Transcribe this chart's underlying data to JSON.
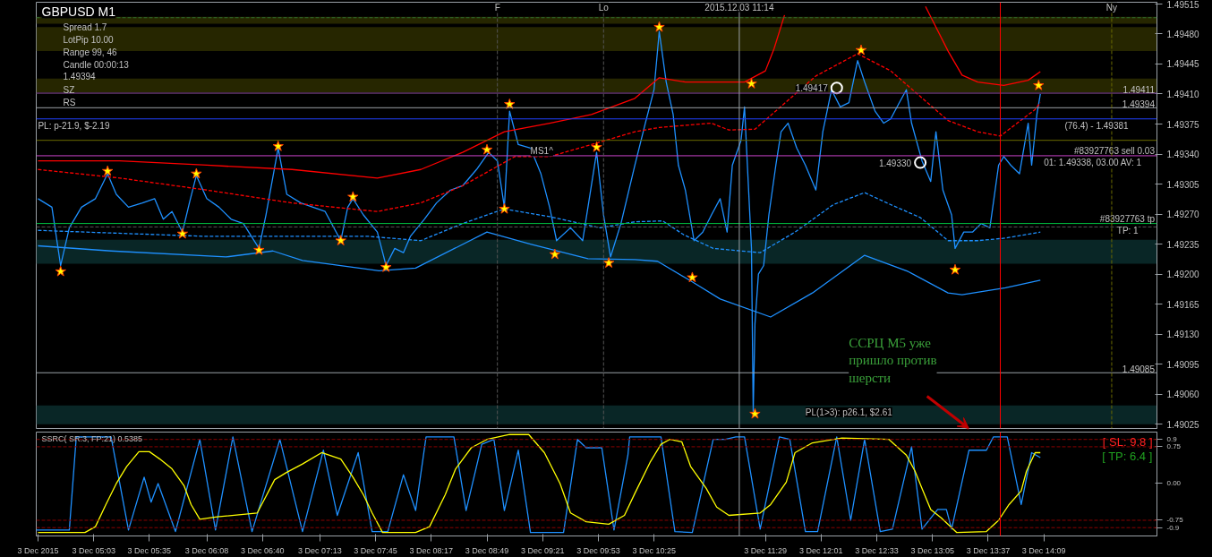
{
  "chart_data": [
    {
      "type": "line",
      "title": "GBPUSD M1",
      "x": [
        "2015-12-03T04:31",
        "2015-12-03T04:39",
        "2015-12-03T04:44",
        "2015-12-03T04:49",
        "2015-12-03T04:56",
        "2015-12-03T05:04",
        "2015-12-03T05:11",
        "2015-12-03T05:16",
        "2015-12-03T05:23",
        "2015-12-03T05:31",
        "2015-12-03T05:38",
        "2015-12-03T05:43",
        "2015-12-03T05:48",
        "2015-12-03T05:54",
        "2015-12-03T05:58",
        "2015-12-03T06:02",
        "2015-12-03T06:08",
        "2015-12-03T06:15",
        "2015-12-03T06:22",
        "2015-12-03T06:29",
        "2015-12-03T06:38",
        "2015-12-03T06:42",
        "2015-12-03T06:49",
        "2015-12-03T06:54",
        "2015-12-03T07:02",
        "2015-12-03T07:09",
        "2015-12-03T07:16",
        "2015-12-03T07:25",
        "2015-12-03T07:29",
        "2015-12-03T07:32",
        "2015-12-03T07:38",
        "2015-12-03T07:46",
        "2015-12-03T07:51",
        "2015-12-03T07:56",
        "2015-12-03T08:01",
        "2015-12-03T08:05",
        "2015-12-03T08:13",
        "2015-12-03T08:20",
        "2015-12-03T08:28",
        "2015-12-03T08:35",
        "2015-12-03T08:43",
        "2015-12-03T08:50",
        "2015-12-03T08:55",
        "2015-12-03T08:59",
        "2015-12-03T09:02",
        "2015-12-03T09:07",
        "2015-12-03T09:14",
        "2015-12-03T09:20",
        "2015-12-03T09:25",
        "2015-12-03T09:29",
        "2015-12-03T09:37",
        "2015-12-03T09:44",
        "2015-12-03T09:52",
        "2015-12-03T09:56",
        "2015-12-03T10:00",
        "2015-12-03T10:06",
        "2015-12-03T10:14",
        "2015-12-03T10:20",
        "2015-12-03T10:25",
        "2015-12-03T10:28",
        "2015-12-03T10:32",
        "2015-12-03T10:36",
        "2015-12-03T10:39",
        "2015-12-03T10:43",
        "2015-12-03T10:48",
        "2015-12-03T10:53",
        "2015-12-03T10:58",
        "2015-12-03T11:03",
        "2015-12-03T11:07",
        "2015-12-03T11:10",
        "2015-12-03T11:15",
        "2015-12-03T11:17",
        "2015-12-03T11:21",
        "2015-12-03T11:22",
        "2015-12-03T11:23",
        "2015-12-03T11:25",
        "2015-12-03T11:28",
        "2015-12-03T11:31",
        "2015-12-03T11:35",
        "2015-12-03T11:38",
        "2015-12-03T11:42",
        "2015-12-03T11:47",
        "2015-12-03T11:52",
        "2015-12-03T11:58",
        "2015-12-03T12:02",
        "2015-12-03T12:07",
        "2015-12-03T12:12",
        "2015-12-03T12:17",
        "2015-12-03T12:22",
        "2015-12-03T12:26",
        "2015-12-03T12:32",
        "2015-12-03T12:37",
        "2015-12-03T12:41",
        "2015-12-03T12:46",
        "2015-12-03T12:50",
        "2015-12-03T12:53",
        "2015-12-03T12:59",
        "2015-12-03T13:04",
        "2015-12-03T13:07",
        "2015-12-03T13:11",
        "2015-12-03T13:16",
        "2015-12-03T13:18",
        "2015-12-03T13:23",
        "2015-12-03T13:28",
        "2015-12-03T13:33",
        "2015-12-03T13:38",
        "2015-12-03T13:43",
        "2015-12-03T13:46",
        "2015-12-03T13:50",
        "2015-12-03T13:55",
        "2015-12-03T14:00",
        "2015-12-03T14:02",
        "2015-12-03T14:05",
        "2015-12-03T14:07"
      ],
      "series": [
        {
          "color": "#1e90ff",
          "values": [
            1.49288,
            1.49278,
            1.4921,
            1.49254,
            1.49278,
            1.49288,
            1.49317,
            1.49293,
            1.49278,
            1.49283,
            1.49288,
            1.49264,
            1.49273,
            1.49249,
            1.49283,
            1.49315,
            1.49288,
            1.49278,
            1.49264,
            1.49259,
            1.4923,
            1.49269,
            1.49347,
            1.49293,
            1.49283,
            1.49278,
            1.49273,
            1.49239,
            1.49278,
            1.49288,
            1.49269,
            1.49249,
            1.4921,
            1.4923,
            1.49225,
            1.49244,
            1.49264,
            1.49283,
            1.49298,
            1.49303,
            1.49322,
            1.49342,
            1.49332,
            1.49278,
            1.4939,
            1.49351,
            1.49347,
            1.49317,
            1.49278,
            1.49239,
            1.49254,
            1.49239,
            1.49342,
            1.49269,
            1.4922,
            1.49259,
            1.49327,
            1.49376,
            1.49415,
            1.49483,
            1.49424,
            1.49386,
            1.49327,
            1.49298,
            1.49239,
            1.49249,
            1.49269,
            1.49288,
            1.49249,
            1.49327,
            1.49356,
            1.49395,
            1.4923,
            1.4904,
            1.49142,
            1.492,
            1.4921,
            1.49269,
            1.49327,
            1.49366,
            1.49376,
            1.49347,
            1.49327,
            1.49298,
            1.49366,
            1.49415,
            1.49395,
            1.494,
            1.49449,
            1.49424,
            1.4939,
            1.49376,
            1.49381,
            1.494,
            1.49415,
            1.49376,
            1.49332,
            1.49308,
            1.49366,
            1.49298,
            1.49269,
            1.4923,
            1.49249,
            1.49249,
            1.49259,
            1.49254,
            1.49327,
            1.49337,
            1.49327,
            1.49317,
            1.49376,
            1.49327,
            1.49386,
            1.4941
          ]
        },
        {
          "color": "#ff0000",
          "x": [
            "2015-12-03T04:31",
            "2015-12-03T05:18",
            "2015-12-03T06:08",
            "2015-12-03T06:57",
            "2015-12-03T07:46",
            "2015-12-03T08:11",
            "2015-12-03T08:35",
            "2015-12-03T08:59",
            "2015-12-03T09:25",
            "2015-12-03T09:49",
            "2015-12-03T10:14",
            "2015-12-03T10:28",
            "2015-12-03T10:43",
            "2015-12-03T10:58",
            "2015-12-03T11:17",
            "2015-12-03T11:29",
            "2015-12-03T11:34",
            "2015-12-03T11:40",
            "2015-12-03T12:17",
            "2015-12-03T13:01",
            "2015-12-03T13:14",
            "2015-12-03T13:22",
            "2015-12-03T13:31",
            "2015-12-03T13:46",
            "2015-12-03T14:00",
            "2015-12-03T14:07"
          ],
          "values": [
            1.49332,
            1.49332,
            1.49327,
            1.49322,
            1.49312,
            1.49322,
            1.49342,
            1.49366,
            1.49376,
            1.49386,
            1.49405,
            1.49429,
            1.49424,
            1.49424,
            1.49424,
            1.49437,
            1.49463,
            1.49502,
            null,
            1.49512,
            1.4946,
            1.49432,
            1.49424,
            1.4942,
            1.49426,
            1.49436
          ]
        },
        {
          "color": "#ff0000",
          "line_style": "dashed",
          "x": [
            "2015-12-03T04:31",
            "2015-12-03T05:18",
            "2015-12-03T06:08",
            "2015-12-03T06:57",
            "2015-12-03T07:46",
            "2015-12-03T08:11",
            "2015-12-03T08:35",
            "2015-12-03T09:05",
            "2015-12-03T09:25",
            "2015-12-03T09:49",
            "2015-12-03T10:14",
            "2015-12-03T10:28",
            "2015-12-03T10:58",
            "2015-12-03T11:08",
            "2015-12-03T11:23",
            "2015-12-03T11:36",
            "2015-12-03T11:58",
            "2015-12-03T12:22",
            "2015-12-03T12:41",
            "2015-12-03T13:14",
            "2015-12-03T13:31",
            "2015-12-03T13:44",
            "2015-12-03T14:04",
            "2015-12-03T14:07"
          ],
          "values": [
            1.49322,
            1.49312,
            1.49298,
            1.49283,
            1.49273,
            1.49283,
            1.49303,
            1.49337,
            1.49337,
            1.49351,
            1.49366,
            1.49371,
            1.49376,
            1.49368,
            1.49369,
            1.49392,
            1.49431,
            1.49457,
            1.49437,
            1.49379,
            1.49366,
            1.49361,
            1.49392,
            1.494
          ]
        },
        {
          "color": "#1e90ff",
          "line_style": "dashed",
          "x": [
            "2015-12-03T04:31",
            "2015-12-03T06:08",
            "2015-12-03T07:41",
            "2015-12-03T08:11",
            "2015-12-03T08:35",
            "2015-12-03T08:59",
            "2015-12-03T09:25",
            "2015-12-03T09:54",
            "2015-12-03T10:14",
            "2015-12-03T10:30",
            "2015-12-03T10:42",
            "2015-12-03T10:59",
            "2015-12-03T11:26",
            "2015-12-03T11:46",
            "2015-12-03T12:08",
            "2015-12-03T12:26",
            "2015-12-03T12:41",
            "2015-12-03T12:58",
            "2015-12-03T13:14",
            "2015-12-03T13:31",
            "2015-12-03T13:47",
            "2015-12-03T14:07"
          ],
          "values": [
            1.49251,
            1.49244,
            1.49244,
            1.49239,
            1.49259,
            1.49276,
            1.49267,
            1.49254,
            1.49261,
            1.49262,
            1.49246,
            1.4923,
            1.49225,
            1.49249,
            1.49281,
            1.49295,
            1.49281,
            1.49266,
            1.49239,
            1.49239,
            1.49242,
            1.49249
          ]
        },
        {
          "color": "#1e90ff",
          "x": [
            "2015-12-03T04:31",
            "2015-12-03T05:13",
            "2015-12-03T06:19",
            "2015-12-03T06:46",
            "2015-12-03T07:03",
            "2015-12-03T07:47",
            "2015-12-03T08:08",
            "2015-12-03T08:49",
            "2015-12-03T09:14",
            "2015-12-03T09:47",
            "2015-12-03T10:14",
            "2015-12-03T10:27",
            "2015-12-03T10:47",
            "2015-12-03T11:03",
            "2015-12-03T11:32",
            "2015-12-03T11:56",
            "2015-12-03T12:26",
            "2015-12-03T12:51",
            "2015-12-03T13:14",
            "2015-12-03T13:22",
            "2015-12-03T13:47",
            "2015-12-03T14:07"
          ],
          "values": [
            1.49233,
            1.49227,
            1.4922,
            1.49227,
            1.49216,
            1.49204,
            1.49207,
            1.49249,
            1.49235,
            1.49218,
            1.49217,
            1.49215,
            1.49191,
            1.49171,
            1.4915,
            1.49178,
            1.49222,
            1.49203,
            1.49178,
            1.49176,
            1.49184,
            1.49193
          ]
        },
        {
          "type": "scatter",
          "marker": "circle",
          "color": "#ffffff",
          "x": [
            "2015-12-03T12:10",
            "2015-12-03T12:58"
          ],
          "values": [
            1.49417,
            1.4933
          ]
        },
        {
          "type": "scatter",
          "marker": "star",
          "color": "#ffff00",
          "x": [
            "2015-12-03T04:44",
            "2015-12-03T05:11",
            "2015-12-03T05:54",
            "2015-12-03T06:02",
            "2015-12-03T06:38",
            "2015-12-03T06:49",
            "2015-12-03T07:25",
            "2015-12-03T07:32",
            "2015-12-03T07:51",
            "2015-12-03T08:49",
            "2015-12-03T08:59",
            "2015-12-03T09:02",
            "2015-12-03T09:28",
            "2015-12-03T09:52",
            "2015-12-03T09:59",
            "2015-12-03T10:28",
            "2015-12-03T10:47",
            "2015-12-03T11:21",
            "2015-12-03T11:23",
            "2015-12-03T12:24",
            "2015-12-03T13:18",
            "2015-12-03T14:06"
          ],
          "values": [
            1.49203,
            1.4932,
            1.49247,
            1.49317,
            1.49228,
            1.49349,
            1.49239,
            1.4929,
            1.49208,
            1.49345,
            1.49276,
            1.49398,
            1.49223,
            1.49348,
            1.49213,
            1.49488,
            1.49196,
            1.49422,
            1.49037,
            1.49461,
            1.49205,
            1.4942
          ]
        }
      ],
      "xlim": [
        "2015-12-03T04:30",
        "2015-12-03T15:14"
      ],
      "ylim": [
        1.4902,
        1.49517
      ],
      "yticks": [
        {
          "value": 1.49025,
          "label": "1.49025"
        },
        {
          "value": 1.4906,
          "label": "1.49060"
        },
        {
          "value": 1.49095,
          "label": "1.49095"
        },
        {
          "value": 1.4913,
          "label": "1.49130"
        },
        {
          "value": 1.49165,
          "label": "1.49165"
        },
        {
          "value": 1.492,
          "label": "1.49200"
        },
        {
          "value": 1.49235,
          "label": "1.49235"
        },
        {
          "value": 1.4927,
          "label": "1.49270"
        },
        {
          "value": 1.49305,
          "label": "1.49305"
        },
        {
          "value": 1.4934,
          "label": "1.49340"
        },
        {
          "value": 1.49375,
          "label": "1.49375"
        },
        {
          "value": 1.4941,
          "label": "1.49410"
        },
        {
          "value": 1.49445,
          "label": "1.49445"
        },
        {
          "value": 1.4948,
          "label": "1.49480"
        },
        {
          "value": 1.49515,
          "label": "1.49515"
        }
      ],
      "tick_labels": "y",
      "ref_lines": [
        {
          "axis": "y",
          "value": 1.49411,
          "label": "1.49411",
          "color": "#6a2aa0"
        },
        {
          "axis": "y",
          "value": 1.49394,
          "label": "1.49394",
          "color": "#9aa0a6"
        },
        {
          "axis": "y",
          "value": 1.49381,
          "color": "#2040ff"
        },
        {
          "axis": "y",
          "value": 1.49356,
          "color": "#6b6b00"
        },
        {
          "axis": "y",
          "value": 1.49338,
          "label": "#83927763 sell 0.03",
          "color": "#cc44cc"
        },
        {
          "axis": "y",
          "value": 1.49259,
          "label": "#83927763 tp",
          "color": "#00c040"
        },
        {
          "axis": "y",
          "value": 1.49255,
          "color": "#555555",
          "line_style": "dashed"
        },
        {
          "axis": "y",
          "value": 1.49499,
          "color": "#2e6e2e",
          "line_style": "dashed"
        },
        {
          "axis": "y",
          "value": 1.49085,
          "label": "1.49085",
          "color": "#9aa0a6"
        },
        {
          "axis": "x",
          "value": "2015-12-03T08:55",
          "label": "F",
          "color": "#555555",
          "line_style": "dashed"
        },
        {
          "axis": "x",
          "value": "2015-12-03T09:56",
          "label": "Lo",
          "color": "#555555",
          "line_style": "dashed"
        },
        {
          "axis": "x",
          "value": "2015-12-03T14:48",
          "label": "Ny",
          "color": "#6b6b00",
          "line_style": "dashed"
        },
        {
          "axis": "x",
          "value": "2015-12-03T11:14",
          "label": "2015.12.03 11:14",
          "color": "#9aa0a6"
        },
        {
          "axis": "x",
          "value": "2015-12-03T13:44",
          "color": "#ff0000"
        }
      ],
      "bands": [
        {
          "axis": "y",
          "from": 1.49492,
          "to": 1.495,
          "color": "#2a2a00"
        },
        {
          "axis": "y",
          "from": 1.4946,
          "to": 1.49488,
          "color": "#2a2a00"
        },
        {
          "axis": "y",
          "from": 1.4941,
          "to": 1.49428,
          "color": "#2a2a00"
        },
        {
          "axis": "y",
          "from": 1.49212,
          "to": 1.4924,
          "color": "#0a2a2a"
        },
        {
          "axis": "y",
          "from": 1.49025,
          "to": 1.49047,
          "color": "#0a2a2a"
        }
      ],
      "annotations": [
        "Spread 1.7",
        "LotPip 10.00",
        "Range 99, 46",
        "Candle 00:00:13",
        "1.49394",
        "SZ",
        "RS",
        {
          "text": "PL: p-21.9, $-2.19",
          "x": "2015-12-03T04:31",
          "y": 1.49381
        },
        {
          "text": "MS1^",
          "x": "2015-12-03T09:14",
          "y": 1.49351
        },
        {
          "text": "1.49417",
          "x": "2015-12-03T12:10",
          "y": 1.49417
        },
        {
          "text": "1.49330",
          "x": "2015-12-03T12:58",
          "y": 1.4933
        },
        {
          "text": "01: 1.49338, 03.00 AV: 1",
          "x": "2015-12-03T14:09",
          "y": 1.49338
        },
        {
          "text": "TP: 1",
          "x": "2015-12-03T14:51",
          "y": 1.49259
        },
        {
          "text": "PL(1>3): p26.1, $2.61",
          "x": "2015-12-03T11:52",
          "y": 1.49047
        },
        {
          "text": "(76.4) - 1.49381",
          "x": "2015-12-03T14:21",
          "y": 1.49381
        },
        "ССРЦ M5 уже\nпришло против\nшерсти"
      ]
    },
    {
      "type": "line",
      "title": "SSRC( SR:3, FP:21) 0.5385",
      "series": [
        {
          "color": "#1e90ff",
          "x": [
            "2015-12-03T04:30",
            "2015-12-03T04:49",
            "2015-12-03T04:53",
            "2015-12-03T05:13",
            "2015-12-03T05:23",
            "2015-12-03T05:32",
            "2015-12-03T05:36",
            "2015-12-03T05:40",
            "2015-12-03T05:50",
            "2015-12-03T06:04",
            "2015-12-03T06:13",
            "2015-12-03T06:23",
            "2015-12-03T06:34",
            "2015-12-03T06:50",
            "2015-12-03T07:03",
            "2015-12-03T07:15",
            "2015-12-03T07:23",
            "2015-12-03T07:35",
            "2015-12-03T07:43",
            "2015-12-03T07:52",
            "2015-12-03T08:01",
            "2015-12-03T08:08",
            "2015-12-03T08:14",
            "2015-12-03T08:30",
            "2015-12-03T08:37",
            "2015-12-03T08:46",
            "2015-12-03T08:53",
            "2015-12-03T08:59",
            "2015-12-03T09:07",
            "2015-12-03T09:14",
            "2015-12-03T09:33",
            "2015-12-03T09:41",
            "2015-12-03T09:46",
            "2015-12-03T09:55",
            "2015-12-03T10:02",
            "2015-12-03T10:10",
            "2015-12-03T10:11",
            "2015-12-03T10:29",
            "2015-12-03T10:37",
            "2015-12-03T10:47",
            "2015-12-03T10:59",
            "2015-12-03T11:06",
            "2015-12-03T11:12",
            "2015-12-03T11:17",
            "2015-12-03T11:26",
            "2015-12-03T11:37",
            "2015-12-03T11:43",
            "2015-12-03T11:52",
            "2015-12-03T11:59",
            "2015-12-03T12:10",
            "2015-12-03T12:18",
            "2015-12-03T12:26",
            "2015-12-03T12:35",
            "2015-12-03T12:42",
            "2015-12-03T12:53",
            "2015-12-03T12:59",
            "2015-12-03T13:08",
            "2015-12-03T13:13",
            "2015-12-03T13:16",
            "2015-12-03T13:26",
            "2015-12-03T13:36",
            "2015-12-03T13:40",
            "2015-12-03T13:48",
            "2015-12-03T13:56",
            "2015-12-03T14:02",
            "2015-12-03T14:07"
          ],
          "values": [
            -0.95,
            -0.95,
            0.95,
            0.95,
            -0.95,
            0.13,
            -0.38,
            0,
            -0.98,
            0.9,
            -0.95,
            0.95,
            -0.98,
            0.9,
            -0.98,
            0.68,
            -0.65,
            0.63,
            -0.98,
            -0.98,
            0.18,
            -0.55,
            0.95,
            0.95,
            -0.55,
            0.8,
            0.9,
            -0.55,
            0.68,
            -1.0,
            -1.0,
            0.9,
            0.73,
            0.73,
            -0.95,
            0.58,
            0.95,
            0.95,
            -0.98,
            -1.0,
            0.9,
            0.9,
            0.95,
            0.95,
            -0.93,
            0.95,
            0.9,
            -0.98,
            -0.98,
            0.95,
            -0.75,
            0.9,
            -0.98,
            -0.93,
            0.75,
            -0.93,
            -0.53,
            -0.53,
            -0.93,
            0.68,
            0.68,
            0.95,
            0.95,
            -0.43,
            0.63,
            0.53
          ]
        },
        {
          "color": "#ffff00",
          "x": [
            "2015-12-03T04:31",
            "2015-12-03T04:58",
            "2015-12-03T05:04",
            "2015-12-03T05:10",
            "2015-12-03T05:16",
            "2015-12-03T05:22",
            "2015-12-03T05:29",
            "2015-12-03T05:35",
            "2015-12-03T05:41",
            "2015-12-03T05:48",
            "2015-12-03T05:55",
            "2015-12-03T05:59",
            "2015-12-03T06:04",
            "2015-12-03T06:14",
            "2015-12-03T06:37",
            "2015-12-03T06:41",
            "2015-12-03T06:47",
            "2015-12-03T06:54",
            "2015-12-03T07:03",
            "2015-12-03T07:14",
            "2015-12-03T07:25",
            "2015-12-03T07:32",
            "2015-12-03T07:38",
            "2015-12-03T07:43",
            "2015-12-03T07:49",
            "2015-12-03T08:08",
            "2015-12-03T08:16",
            "2015-12-03T08:25",
            "2015-12-03T08:31",
            "2015-12-03T08:40",
            "2015-12-03T08:49",
            "2015-12-03T09:02",
            "2015-12-03T09:13",
            "2015-12-03T09:22",
            "2015-12-03T09:31",
            "2015-12-03T09:37",
            "2015-12-03T09:46",
            "2015-12-03T09:59",
            "2015-12-03T10:08",
            "2015-12-03T10:14",
            "2015-12-03T10:23",
            "2015-12-03T10:29",
            "2015-12-03T10:34",
            "2015-12-03T10:41",
            "2015-12-03T10:46",
            "2015-12-03T10:55",
            "2015-12-03T11:01",
            "2015-12-03T11:08",
            "2015-12-03T11:26",
            "2015-12-03T11:32",
            "2015-12-03T11:41",
            "2015-12-03T11:46",
            "2015-12-03T11:56",
            "2015-12-03T12:13",
            "2015-12-03T12:40",
            "2015-12-03T12:50",
            "2015-12-03T12:55",
            "2015-12-03T12:59",
            "2015-12-03T13:04",
            "2015-12-03T13:10",
            "2015-12-03T13:19",
            "2015-12-03T13:36",
            "2015-12-03T13:43",
            "2015-12-03T13:49",
            "2015-12-03T13:56",
            "2015-12-03T13:59",
            "2015-12-03T14:04",
            "2015-12-03T14:07"
          ],
          "values": [
            -1.0,
            -1.0,
            -0.88,
            -0.43,
            0,
            0.35,
            0.65,
            0.65,
            0.5,
            0.3,
            -0.05,
            -0.43,
            -0.73,
            -0.68,
            -0.6,
            -0.33,
            0.08,
            0.23,
            0.4,
            0.63,
            0.5,
            0.13,
            -0.23,
            -0.6,
            -1.0,
            -1.0,
            -0.88,
            -0.23,
            0.3,
            0.73,
            0.9,
            1.0,
            1.0,
            0.63,
            0,
            -0.6,
            -0.78,
            -0.83,
            -0.65,
            -0.2,
            0.45,
            0.8,
            0.9,
            0.85,
            0.35,
            -0.1,
            -0.48,
            -0.65,
            -0.6,
            -0.43,
            0.03,
            0.63,
            0.83,
            0.93,
            0.9,
            0.58,
            0.25,
            -0.1,
            -0.53,
            -0.7,
            -1.0,
            -0.98,
            -0.75,
            -0.43,
            -0.15,
            0.25,
            0.63,
            0.63
          ]
        }
      ],
      "xlim": [
        "2015-12-03T04:30",
        "2015-12-03T15:14"
      ],
      "ylim": [
        -1.07,
        1.05
      ],
      "xticks": [
        {
          "value": "2015-12-03T04:31",
          "label": "3 Dec 2015"
        },
        {
          "value": "2015-12-03T05:03",
          "label": "3 Dec 05:03"
        },
        {
          "value": "2015-12-03T05:35",
          "label": "3 Dec 05:35"
        },
        {
          "value": "2015-12-03T06:08",
          "label": "3 Dec 06:08"
        },
        {
          "value": "2015-12-03T06:40",
          "label": "3 Dec 06:40"
        },
        {
          "value": "2015-12-03T07:13",
          "label": "3 Dec 07:13"
        },
        {
          "value": "2015-12-03T07:45",
          "label": "3 Dec 07:45"
        },
        {
          "value": "2015-12-03T08:17",
          "label": "3 Dec 08:17"
        },
        {
          "value": "2015-12-03T08:49",
          "label": "3 Dec 08:49"
        },
        {
          "value": "2015-12-03T09:21",
          "label": "3 Dec 09:21"
        },
        {
          "value": "2015-12-03T09:53",
          "label": "3 Dec 09:53"
        },
        {
          "value": "2015-12-03T10:25",
          "label": "3 Dec 10:25"
        },
        {
          "value": "2015-12-03T11:29",
          "label": "3 Dec 11:29"
        },
        {
          "value": "2015-12-03T12:01",
          "label": "3 Dec 12:01"
        },
        {
          "value": "2015-12-03T12:33",
          "label": "3 Dec 12:33"
        },
        {
          "value": "2015-12-03T13:05",
          "label": "3 Dec 13:05"
        },
        {
          "value": "2015-12-03T13:37",
          "label": "3 Dec 13:37"
        },
        {
          "value": "2015-12-03T14:09",
          "label": "3 Dec 14:09"
        }
      ],
      "yticks": [
        0.9,
        0.75,
        {
          "value": 0,
          "label": "0.00"
        },
        -0.75,
        -0.9
      ],
      "ref_lines": [
        {
          "axis": "y",
          "value": 0.9,
          "color": "#8b0000",
          "line_style": "dashed"
        },
        {
          "axis": "y",
          "value": 0.75,
          "color": "#8b0000",
          "line_style": "dashed"
        },
        {
          "axis": "y",
          "value": -0.75,
          "color": "#8b0000",
          "line_style": "dashed"
        },
        {
          "axis": "y",
          "value": -0.9,
          "color": "#8b0000",
          "line_style": "dashed"
        },
        {
          "axis": "x",
          "value": "2015-12-03T11:14",
          "color": "#9aa0a6"
        },
        {
          "axis": "x",
          "value": "2015-12-03T13:44",
          "color": "#ff0000"
        }
      ],
      "annotations": [
        "[ SL: 9.8 ]",
        "[ TP: 6.4 ]"
      ]
    }
  ]
}
